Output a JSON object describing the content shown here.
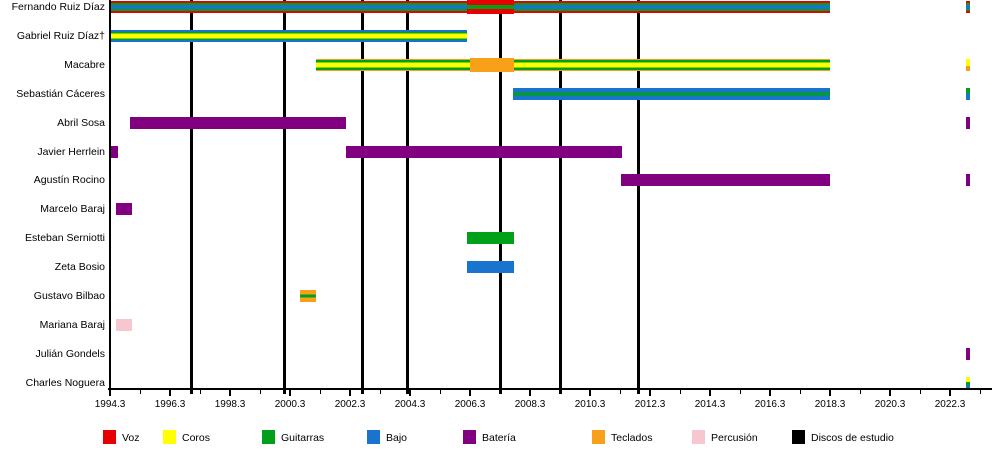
{
  "chart_data": {
    "type": "timeline",
    "x_axis": {
      "start_year": 1994.3,
      "end_year": 2022.3,
      "major_tick_labels": [
        "1994.3",
        "1996.3",
        "1998.3",
        "2000.3",
        "2002.3",
        "2004.3",
        "2006.3",
        "2008.3",
        "2010.3",
        "2012.3",
        "2014.3",
        "2016.3",
        "2018.3",
        "2020.3",
        "2022.3"
      ],
      "major_tick_interval_years": 2,
      "minor_tick_interval_years": 1
    },
    "legend": [
      {
        "role": "voz",
        "label": "Voz",
        "color": "#e60000"
      },
      {
        "role": "coros",
        "label": "Coros",
        "color": "#ffff00"
      },
      {
        "role": "guitarras",
        "label": "Guitarras",
        "color": "#00a019"
      },
      {
        "role": "bajo",
        "label": "Bajo",
        "color": "#1874cd"
      },
      {
        "role": "bateria",
        "label": "Batería",
        "color": "#800080"
      },
      {
        "role": "teclados",
        "label": "Teclados",
        "color": "#f9a01b"
      },
      {
        "role": "percusion",
        "label": "Percusión",
        "color": "#f6c7ce"
      },
      {
        "role": "discos",
        "label": "Discos de estudio",
        "color": "#000000"
      }
    ],
    "studio_album_years": [
      1997.0,
      2000.1,
      2002.7,
      2004.2,
      2007.3,
      2009.3,
      2011.9
    ],
    "members": [
      {
        "name": "Fernando Ruiz Díaz",
        "segments": [
          {
            "start": 1994.33,
            "end": 2018.3,
            "roles": "voz-guitarras-bajo"
          },
          {
            "start": 2006.2,
            "end": 2007.77,
            "roles": "voz-guitarras",
            "tall": true
          },
          {
            "start": 2022.83,
            "end": 2022.97,
            "roles": "voz-guitarras-bajo"
          }
        ]
      },
      {
        "name": "Gabriel Ruiz Díaz†",
        "segments": [
          {
            "start": 1994.33,
            "end": 2006.2,
            "roles": "bajo-guitarras-coros"
          }
        ]
      },
      {
        "name": "Macabre",
        "segments": [
          {
            "start": 2001.17,
            "end": 2018.3,
            "roles": "teclados-guitarras-coros"
          },
          {
            "start": 2006.3,
            "end": 2007.77,
            "roles": "teclados",
            "tall": true
          },
          {
            "start": 2022.83,
            "end": 2022.97,
            "roles": "coros-teclados"
          }
        ]
      },
      {
        "name": "Sebastián Cáceres",
        "segments": [
          {
            "start": 2007.73,
            "end": 2018.3,
            "roles": "bajo-guitarras"
          },
          {
            "start": 2022.83,
            "end": 2022.97,
            "roles": "guitarras-bajo"
          }
        ]
      },
      {
        "name": "Abril Sosa",
        "segments": [
          {
            "start": 1994.97,
            "end": 2002.17,
            "roles": "bateria"
          },
          {
            "start": 2022.83,
            "end": 2022.97,
            "roles": "bateria"
          }
        ]
      },
      {
        "name": "Javier Herrlein",
        "segments": [
          {
            "start": 1994.33,
            "end": 1994.57,
            "roles": "bateria"
          },
          {
            "start": 2002.17,
            "end": 2011.37,
            "roles": "bateria"
          }
        ]
      },
      {
        "name": "Agustín Rocino",
        "segments": [
          {
            "start": 2011.33,
            "end": 2018.3,
            "roles": "bateria"
          },
          {
            "start": 2022.83,
            "end": 2022.97,
            "roles": "bateria"
          }
        ]
      },
      {
        "name": "Marcelo Baraj",
        "segments": [
          {
            "start": 1994.5,
            "end": 1995.03,
            "roles": "bateria"
          }
        ]
      },
      {
        "name": "Esteban Serniotti",
        "segments": [
          {
            "start": 2006.2,
            "end": 2007.77,
            "roles": "guitarras"
          }
        ]
      },
      {
        "name": "Zeta Bosio",
        "segments": [
          {
            "start": 2006.2,
            "end": 2007.77,
            "roles": "bajo"
          }
        ]
      },
      {
        "name": "Gustavo Bilbao",
        "segments": [
          {
            "start": 2000.63,
            "end": 2001.17,
            "roles": "teclados-guitarras"
          }
        ]
      },
      {
        "name": "Mariana Baraj",
        "segments": [
          {
            "start": 1994.5,
            "end": 1995.03,
            "roles": "percusion"
          }
        ]
      },
      {
        "name": "Julián Gondels",
        "segments": [
          {
            "start": 2022.83,
            "end": 2022.97,
            "roles": "bateria"
          }
        ]
      },
      {
        "name": "Charles Noguera",
        "segments": [
          {
            "start": 2022.83,
            "end": 2022.97,
            "roles": "coros-guitarras-bajo"
          }
        ]
      }
    ]
  }
}
